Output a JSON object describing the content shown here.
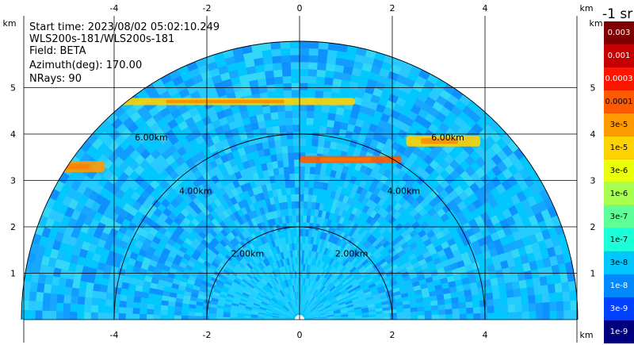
{
  "info": {
    "start_time": "Start time: 2023/08/02 05:02:10.249",
    "device": "WLS200s-181/WLS200s-181",
    "field": "Field: BETA",
    "azimuth": "Azimuth(deg): 170.00",
    "nrays": "NRays: 90"
  },
  "colorbar": {
    "unit_label": "-1 sr",
    "levels": [
      {
        "label": "0.003",
        "color": "#7f0000"
      },
      {
        "label": "0.001",
        "color": "#c60000"
      },
      {
        "label": "0.0003",
        "color": "#ff1400"
      },
      {
        "label": "0.0001",
        "color": "#ff5a00"
      },
      {
        "label": "3e-5",
        "color": "#ff9a00"
      },
      {
        "label": "1e-5",
        "color": "#ffd300"
      },
      {
        "label": "3e-6",
        "color": "#e9ff0e"
      },
      {
        "label": "1e-6",
        "color": "#a7ff50"
      },
      {
        "label": "3e-7",
        "color": "#5fff97"
      },
      {
        "label": "1e-7",
        "color": "#1bffdb"
      },
      {
        "label": "3e-8",
        "color": "#00c8ff"
      },
      {
        "label": "1e-8",
        "color": "#0088ff"
      },
      {
        "label": "3e-9",
        "color": "#0040ff"
      },
      {
        "label": "1e-9",
        "color": "#00007f"
      }
    ]
  },
  "chart_data": {
    "type": "heatmap",
    "projection": "polar-half (RHI scan)",
    "x_unit": "km",
    "y_unit": "km",
    "x_ticks": [
      -4,
      -2,
      0,
      2,
      4
    ],
    "y_ticks": [
      1,
      2,
      3,
      4,
      5
    ],
    "xlim": [
      -6,
      6
    ],
    "ylim": [
      0,
      5.85
    ],
    "range_max_km": 6,
    "range_rings": [
      {
        "range_km": 2,
        "label": "2.00km"
      },
      {
        "range_km": 4,
        "label": "4.00km"
      },
      {
        "range_km": 6,
        "label": "6.00km"
      }
    ],
    "grid": true,
    "background_level": "3e-8",
    "features": [
      {
        "description": "layer",
        "height_km_left": 4.7,
        "height_km_right": 4.7,
        "x_from_km": -3.9,
        "x_to_km": 1.2,
        "level": "1e-5"
      },
      {
        "description": "layer",
        "height_km": 3.45,
        "x_from_km": 0.0,
        "x_to_km": 2.2,
        "level": "0.0001"
      },
      {
        "description": "patch",
        "height_km": 3.3,
        "x_from_km": -5.3,
        "x_to_km": -4.2,
        "level": "3e-5"
      },
      {
        "description": "patch",
        "height_km": 3.85,
        "x_from_km": 2.3,
        "x_to_km": 3.9,
        "level": "1e-5"
      }
    ]
  }
}
